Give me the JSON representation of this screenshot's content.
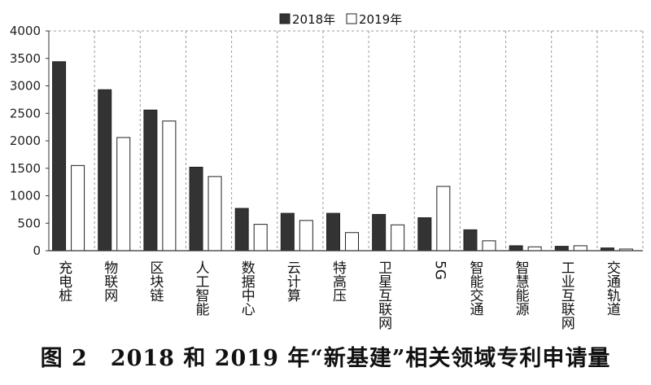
{
  "caption": "图 2　2018 和 2019 年“新基建”相关领域专利申请量",
  "chart_data": {
    "type": "bar",
    "title": "",
    "xlabel": "",
    "ylabel": "",
    "ylim": [
      0,
      4000
    ],
    "yticks": [
      0,
      500,
      1000,
      1500,
      2000,
      2500,
      3000,
      3500,
      4000
    ],
    "legend": "top-center",
    "grid": "vertical dashed category separators",
    "categories": [
      "充电桩",
      "物联网",
      "区块链",
      "人工智能",
      "数据中心",
      "云计算",
      "特高压",
      "卫星互联网",
      "5G",
      "智能交通",
      "智慧能源",
      "工业互联网",
      "交通轨道"
    ],
    "series": [
      {
        "name": "2018年",
        "color": "#333333",
        "values": [
          3440,
          2930,
          2560,
          1520,
          770,
          680,
          680,
          660,
          600,
          380,
          90,
          80,
          50
        ]
      },
      {
        "name": "2019年",
        "color": "#ffffff",
        "values": [
          1550,
          2060,
          2360,
          1350,
          480,
          550,
          330,
          470,
          1170,
          180,
          70,
          90,
          30
        ]
      }
    ]
  }
}
